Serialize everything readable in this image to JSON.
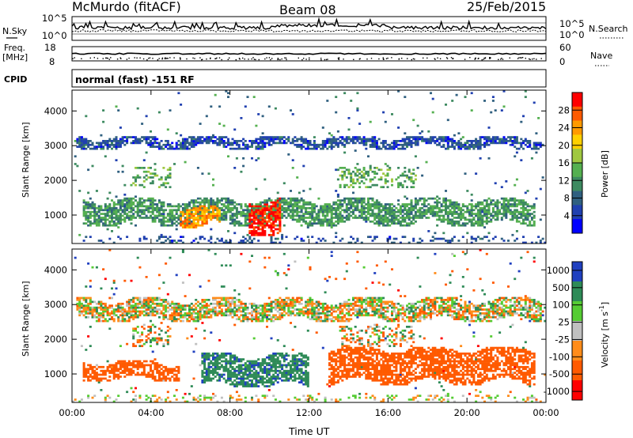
{
  "header": {
    "station": "McMurdo (fitACF)",
    "beam": "Beam 08",
    "date": "25/Feb/2015"
  },
  "panels": {
    "nsky_label": "N.Sky",
    "nsky_ticks": [
      "10^5",
      "10^0"
    ],
    "nsearch_label": "N.Search",
    "nsearch_ticks": [
      "10^5",
      "10^0"
    ],
    "freq_label": "Freq.",
    "freq_unit": "[MHz]",
    "freq_ticks": [
      "18",
      "8"
    ],
    "nave_label": "Nave",
    "nave_ticks": [
      "60",
      "0"
    ],
    "cpid_label": "CPID",
    "cpid_text": "normal (fast) -151 RF"
  },
  "colors": {
    "power": [
      "#0000ff",
      "#2040b0",
      "#306080",
      "#3d8a60",
      "#55b050",
      "#a0c840",
      "#ffd000",
      "#ff9a00",
      "#ff5a00",
      "#ff0000"
    ],
    "velocity": [
      "#ff0000",
      "#ff5a00",
      "#ff8c1a",
      "#c0c0c0",
      "#55cc33",
      "#2e8b57",
      "#2040c0"
    ]
  },
  "chart_data": [
    {
      "type": "heatmap",
      "name": "Power",
      "ylabel": "Slant Range [km]",
      "x_ticks": [
        "00:00",
        "04:00",
        "08:00",
        "12:00",
        "16:00",
        "20:00",
        "00:00"
      ],
      "x_range_hours": [
        0,
        24
      ],
      "y_ticks": [
        1000,
        2000,
        3000,
        4000
      ],
      "ylim": [
        180,
        4600
      ],
      "colorbar": {
        "label": "Power [dB]",
        "ticks": [
          4,
          8,
          12,
          16,
          20,
          24,
          28
        ],
        "range": [
          0,
          32
        ]
      },
      "features": [
        {
          "desc": "main E/F band",
          "t_start": 0.5,
          "t_end": 23.5,
          "range_km": [
            700,
            1500
          ],
          "power_db": 12
        },
        {
          "desc": "strong echo burst",
          "t_start": 9.0,
          "t_end": 10.6,
          "range_km": [
            400,
            1500
          ],
          "power_db": 30
        },
        {
          "desc": "strong echoes",
          "t_start": 5.5,
          "t_end": 7.5,
          "range_km": [
            600,
            1300
          ],
          "power_db": 24
        },
        {
          "desc": "upper band",
          "t_start": 0.2,
          "t_end": 23.8,
          "range_km": [
            2900,
            3300
          ],
          "power_db": 6
        }
      ]
    },
    {
      "type": "heatmap",
      "name": "Velocity",
      "ylabel": "Slant Range [km]",
      "x_ticks": [
        "00:00",
        "04:00",
        "08:00",
        "12:00",
        "16:00",
        "20:00",
        "00:00"
      ],
      "x_range_hours": [
        0,
        24
      ],
      "xlabel": "Time UT",
      "y_ticks": [
        1000,
        2000,
        3000,
        4000
      ],
      "ylim": [
        180,
        4600
      ],
      "colorbar": {
        "label": "Velocity [m s^-1]",
        "ticks": [
          "1000",
          "500",
          "100",
          "25",
          "-25",
          "-100",
          "-500",
          "-1000"
        ]
      },
      "features": [
        {
          "desc": "westward/away flows",
          "t_start": 0.5,
          "t_end": 5.5,
          "range_km": [
            800,
            1400
          ],
          "velocity": -300
        },
        {
          "desc": "toward flows",
          "t_start": 6.5,
          "t_end": 12.0,
          "range_km": [
            600,
            1600
          ],
          "velocity": 400
        },
        {
          "desc": "mixed away",
          "t_start": 13.0,
          "t_end": 23.5,
          "range_km": [
            700,
            1800
          ],
          "velocity": -300
        },
        {
          "desc": "ground scatter",
          "t_start": 0.2,
          "t_end": 23.8,
          "range_km": [
            2500,
            3200
          ],
          "velocity": 0
        }
      ]
    }
  ],
  "texts": {
    "pwr_cb_label": "Power [dB]",
    "vel_cb_label": "Velocity [m s",
    "vel_cb_sup": "-1",
    "vel_cb_close": "]",
    "xlabel": "Time UT",
    "ylabel": "Slant Range [km]"
  }
}
